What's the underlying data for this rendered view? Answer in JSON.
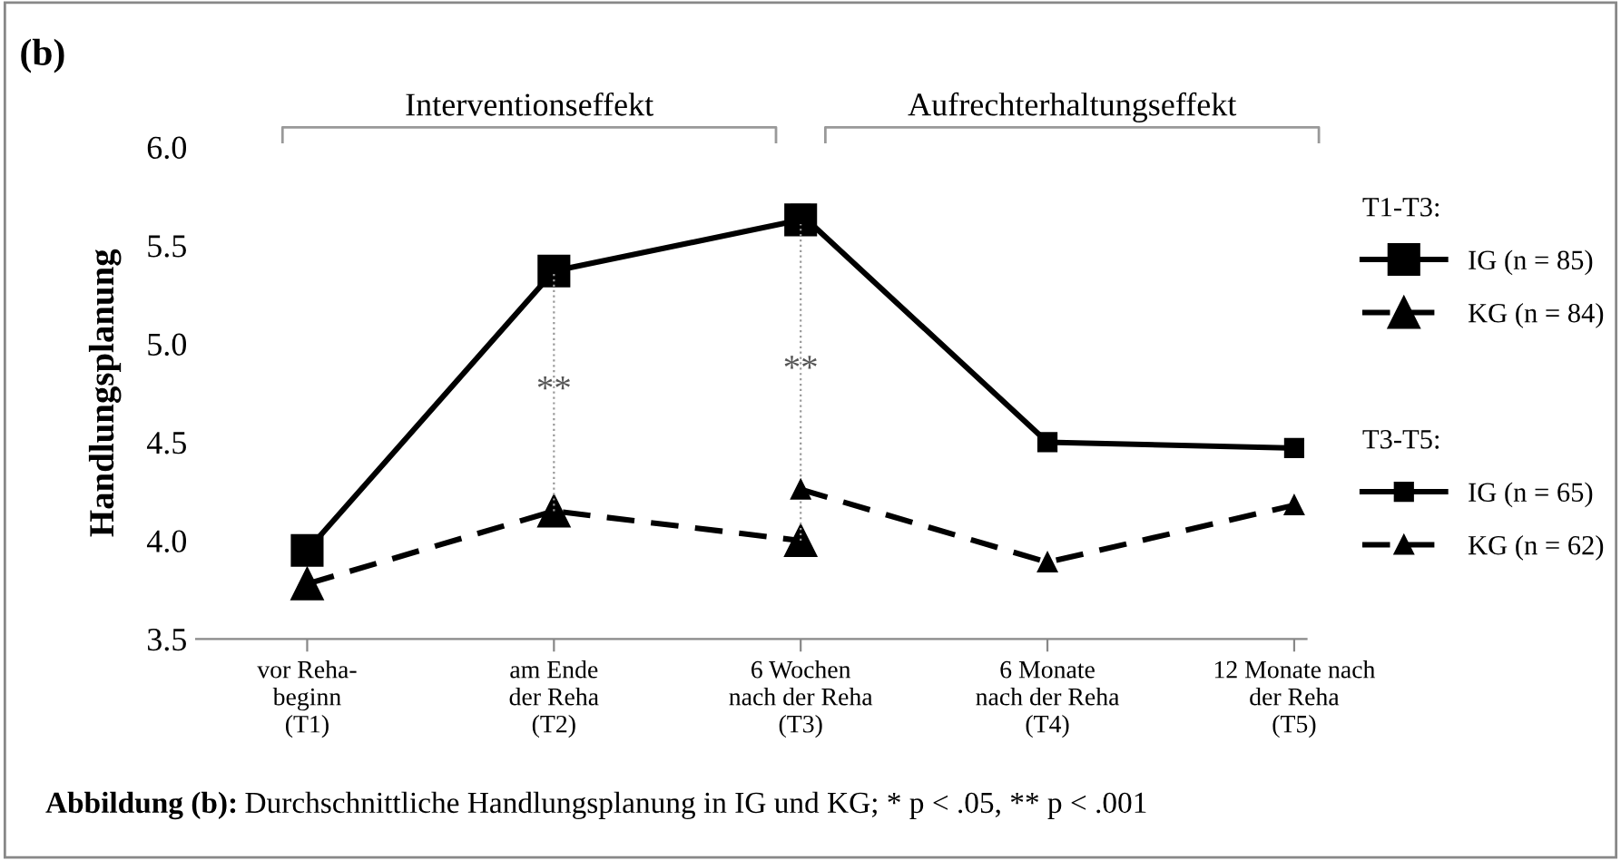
{
  "chart_data": {
    "type": "line",
    "title": "(b)",
    "ylabel": "Handlungsplanung",
    "categories": [
      "vor Reha-\nbeginn\n(T1)",
      "am Ende\nder Reha\n(T2)",
      "6 Wochen\nnach der Reha\n(T3)",
      "6 Monate\nnach der Reha\n(T4)",
      "12 Monate nach\nder Reha\n(T5)"
    ],
    "series": [
      {
        "name": "IG (n = 85)",
        "color": "#000000",
        "marker": "square",
        "line_style": "solid",
        "values": [
          3.95,
          5.37,
          5.63,
          null,
          null
        ]
      },
      {
        "name": "KG (n = 84)",
        "color": "#000000",
        "marker": "triangle",
        "line_style": "dashed",
        "values": [
          3.78,
          4.15,
          4.0,
          null,
          null
        ]
      },
      {
        "name": "IG (n = 65)",
        "color": "#000000",
        "marker": "square",
        "line_style": "solid",
        "values": [
          null,
          null,
          5.66,
          4.5,
          4.47
        ]
      },
      {
        "name": "KG (n = 62)",
        "color": "#000000",
        "marker": "triangle",
        "line_style": "dashed",
        "values": [
          null,
          null,
          4.26,
          3.89,
          4.18
        ]
      }
    ],
    "ylim": [
      3.5,
      6.0
    ],
    "yticks": [
      3.5,
      {
        "value": 4,
        "label": "4.0"
      },
      4.5,
      {
        "value": 5,
        "label": "5.0"
      },
      5.5,
      {
        "value": 6,
        "label": "6.0"
      }
    ],
    "grid": false,
    "legend": "right",
    "annotations": [
      "Interventionseffekt",
      "Aufrechterhaltungseffekt",
      "T1-T3:",
      "T3-T5:",
      "**",
      "**",
      "Abbildung (b):",
      "Durchschnittliche Handlungsplanung in IG und KG; * p < .05, ** p < .001"
    ]
  }
}
